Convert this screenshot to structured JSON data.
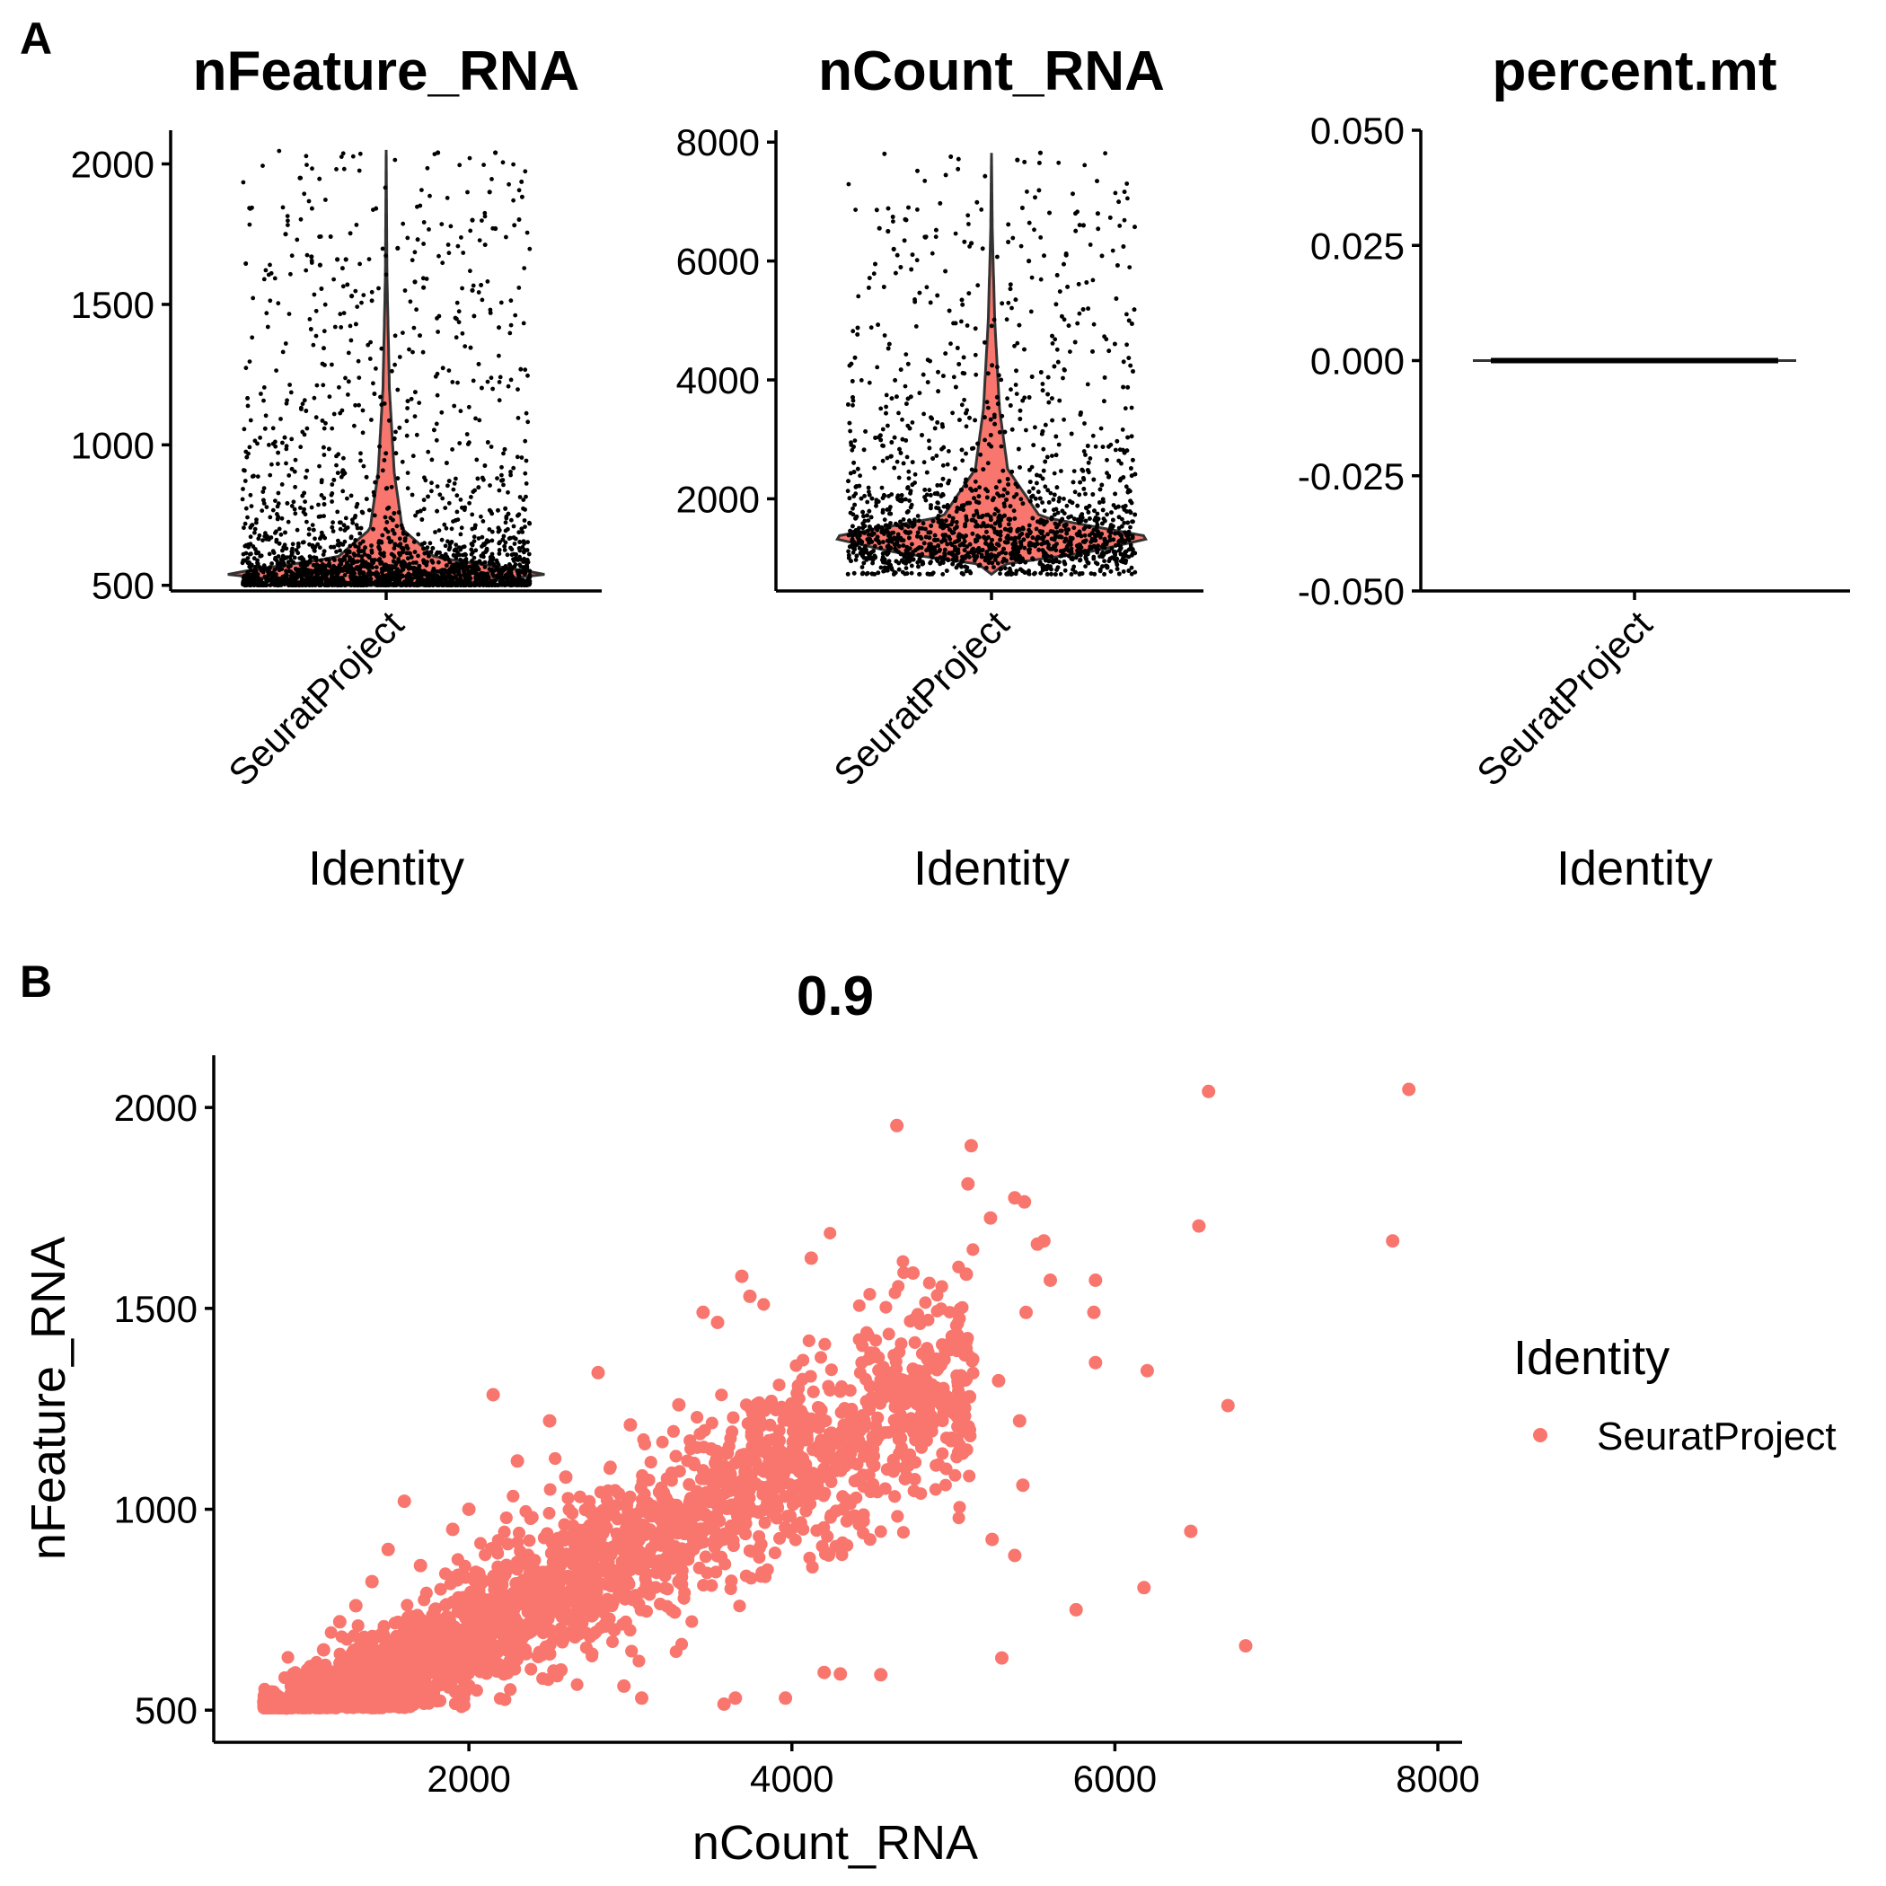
{
  "panels": {
    "a": "A",
    "b": "B"
  },
  "colors": {
    "accent": "#F8766D",
    "violin_outline": "#333333",
    "points": "#000000"
  },
  "chart_data": [
    {
      "type": "violin",
      "title": "nFeature_RNA",
      "xlabel": "Identity",
      "ylabel": "",
      "categories": [
        "SeuratProject"
      ],
      "ylim": [
        480,
        2120
      ],
      "yticks": [
        500,
        1000,
        1500,
        2000
      ],
      "ytick_labels": [
        "500",
        "1000",
        "1500",
        "2000"
      ],
      "summary": {
        "min": 500,
        "mode": 540,
        "max": 2050
      },
      "density_profile": [
        [
          500,
          0.35
        ],
        [
          540,
          1.0
        ],
        [
          600,
          0.3
        ],
        [
          700,
          0.1
        ],
        [
          900,
          0.05
        ],
        [
          1200,
          0.02
        ],
        [
          1600,
          0.005
        ],
        [
          2050,
          0.0
        ]
      ],
      "outlier_points": [
        [
          2040,
          0.68
        ],
        [
          2040,
          0.88
        ],
        [
          1950,
          0.2
        ],
        [
          1900,
          0.86
        ],
        [
          1800,
          0.8
        ],
        [
          1770,
          0.88
        ],
        [
          1750,
          0.15
        ],
        [
          1700,
          0.54
        ],
        [
          1670,
          0.24
        ],
        [
          1660,
          0.33
        ],
        [
          1660,
          0.36
        ],
        [
          1640,
          0.27
        ],
        [
          1580,
          0.6
        ],
        [
          1560,
          0.63
        ],
        [
          1550,
          0.8
        ],
        [
          1530,
          0.38
        ]
      ],
      "legend": "none"
    },
    {
      "type": "violin",
      "title": "nCount_RNA",
      "xlabel": "Identity",
      "ylabel": "",
      "categories": [
        "SeuratProject"
      ],
      "ylim": [
        450,
        8200
      ],
      "yticks": [
        2000,
        4000,
        6000,
        8000
      ],
      "ytick_labels": [
        "2000",
        "4000",
        "6000",
        "8000"
      ],
      "summary": {
        "min": 730,
        "mode": 1350,
        "max": 7820
      },
      "density_profile": [
        [
          730,
          0.0
        ],
        [
          900,
          0.08
        ],
        [
          1100,
          0.6
        ],
        [
          1350,
          1.0
        ],
        [
          1700,
          0.3
        ],
        [
          2500,
          0.1
        ],
        [
          3500,
          0.05
        ],
        [
          5000,
          0.02
        ],
        [
          6500,
          0.005
        ],
        [
          7820,
          0.0
        ]
      ],
      "outlier_points": [
        [
          7820,
          0.67
        ],
        [
          7700,
          0.59
        ],
        [
          6800,
          0.87
        ],
        [
          6700,
          0.2
        ],
        [
          6600,
          0.82
        ],
        [
          6550,
          0.11
        ],
        [
          6500,
          0.14
        ],
        [
          6400,
          0.27
        ],
        [
          6300,
          0.43
        ],
        [
          6200,
          0.16
        ],
        [
          6100,
          0.76
        ],
        [
          6000,
          0.63
        ]
      ],
      "legend": "none"
    },
    {
      "type": "violin",
      "title": "percent.mt",
      "xlabel": "Identity",
      "ylabel": "",
      "categories": [
        "SeuratProject"
      ],
      "ylim": [
        -0.05,
        0.05
      ],
      "yticks": [
        -0.05,
        -0.025,
        0.0,
        0.025,
        0.05
      ],
      "ytick_labels": [
        "-0.050",
        "-0.025",
        "0.000",
        "0.025",
        "0.050"
      ],
      "summary": {
        "min": 0,
        "max": 0
      },
      "legend": "none"
    },
    {
      "type": "scatter",
      "title": "0.9",
      "xlabel": "nCount_RNA",
      "ylabel": "nFeature_RNA",
      "xlim": [
        420,
        8150
      ],
      "ylim": [
        420,
        2130
      ],
      "xticks": [
        2000,
        4000,
        6000,
        8000
      ],
      "xtick_labels": [
        "2000",
        "4000",
        "6000",
        "8000"
      ],
      "yticks": [
        500,
        1000,
        1500,
        2000
      ],
      "ytick_labels": [
        "500",
        "1000",
        "1500",
        "2000"
      ],
      "series": [
        {
          "name": "SeuratProject",
          "color": "#F8766D",
          "trend": {
            "x_min": 730,
            "x_max": 7820,
            "slope": 0.21,
            "intercept": 270
          },
          "points": [
            [
              7820,
              2045
            ],
            [
              6580,
              2040
            ],
            [
              4650,
              1955
            ],
            [
              5110,
              1905
            ],
            [
              5090,
              1810
            ],
            [
              5230,
              1725
            ],
            [
              5380,
              1775
            ],
            [
              5440,
              1765
            ],
            [
              5560,
              1668
            ],
            [
              5520,
              1660
            ],
            [
              6520,
              1705
            ],
            [
              7720,
              1668
            ],
            [
              4120,
              1625
            ],
            [
              4750,
              1588
            ],
            [
              5080,
              1585
            ],
            [
              5600,
              1570
            ],
            [
              5880,
              1570
            ],
            [
              3690,
              1580
            ],
            [
              3740,
              1530
            ],
            [
              3450,
              1490
            ],
            [
              3540,
              1465
            ],
            [
              5870,
              1490
            ],
            [
              6200,
              1345
            ],
            [
              6700,
              1258
            ],
            [
              5880,
              1365
            ],
            [
              5450,
              1490
            ],
            [
              5280,
              1320
            ],
            [
              5410,
              1220
            ],
            [
              5430,
              1060
            ],
            [
              5240,
              925
            ],
            [
              5380,
              885
            ],
            [
              6470,
              945
            ],
            [
              6180,
              805
            ],
            [
              5760,
              750
            ],
            [
              6810,
              660
            ],
            [
              5300,
              630
            ],
            [
              4550,
              588
            ],
            [
              4300,
              590
            ],
            [
              4200,
              594
            ],
            [
              3960,
              530
            ],
            [
              3580,
              515
            ],
            [
              3650,
              530
            ],
            [
              3070,
              530
            ],
            [
              2960,
              560
            ],
            [
              2570,
              600
            ],
            [
              2680,
              690
            ],
            [
              2150,
              1285
            ],
            [
              2800,
              1340
            ],
            [
              2500,
              1220
            ],
            [
              3000,
              1210
            ],
            [
              2300,
              1120
            ],
            [
              3200,
              1030
            ],
            [
              2600,
              1080
            ],
            [
              3500,
              1150
            ],
            [
              3800,
              1220
            ],
            [
              4600,
              1300
            ],
            [
              4900,
              1360
            ],
            [
              4300,
              1180
            ],
            [
              4000,
              1240
            ],
            [
              3300,
              1260
            ],
            [
              1500,
              900
            ],
            [
              1700,
              860
            ],
            [
              1900,
              950
            ],
            [
              1400,
              820
            ],
            [
              1300,
              760
            ],
            [
              1200,
              720
            ],
            [
              1600,
              1020
            ],
            [
              2000,
              1000
            ],
            [
              2400,
              800
            ],
            [
              2700,
              820
            ],
            [
              3000,
              850
            ],
            [
              3400,
              1000
            ],
            [
              3700,
              1050
            ],
            [
              3900,
              1100
            ],
            [
              4200,
              1100
            ],
            [
              4500,
              1150
            ],
            [
              4800,
              1200
            ],
            [
              5100,
              1280
            ],
            [
              2200,
              700
            ],
            [
              2900,
              700
            ],
            [
              3300,
              820
            ],
            [
              1800,
              700
            ],
            [
              1100,
              650
            ],
            [
              1000,
              600
            ],
            [
              900,
              560
            ],
            [
              800,
              530
            ],
            [
              730,
              520
            ],
            [
              870,
              505
            ],
            [
              1500,
              560
            ],
            [
              2000,
              560
            ],
            [
              2500,
              640
            ],
            [
              3200,
              950
            ]
          ]
        }
      ],
      "legend": {
        "title": "Identity",
        "position": "right"
      }
    }
  ]
}
